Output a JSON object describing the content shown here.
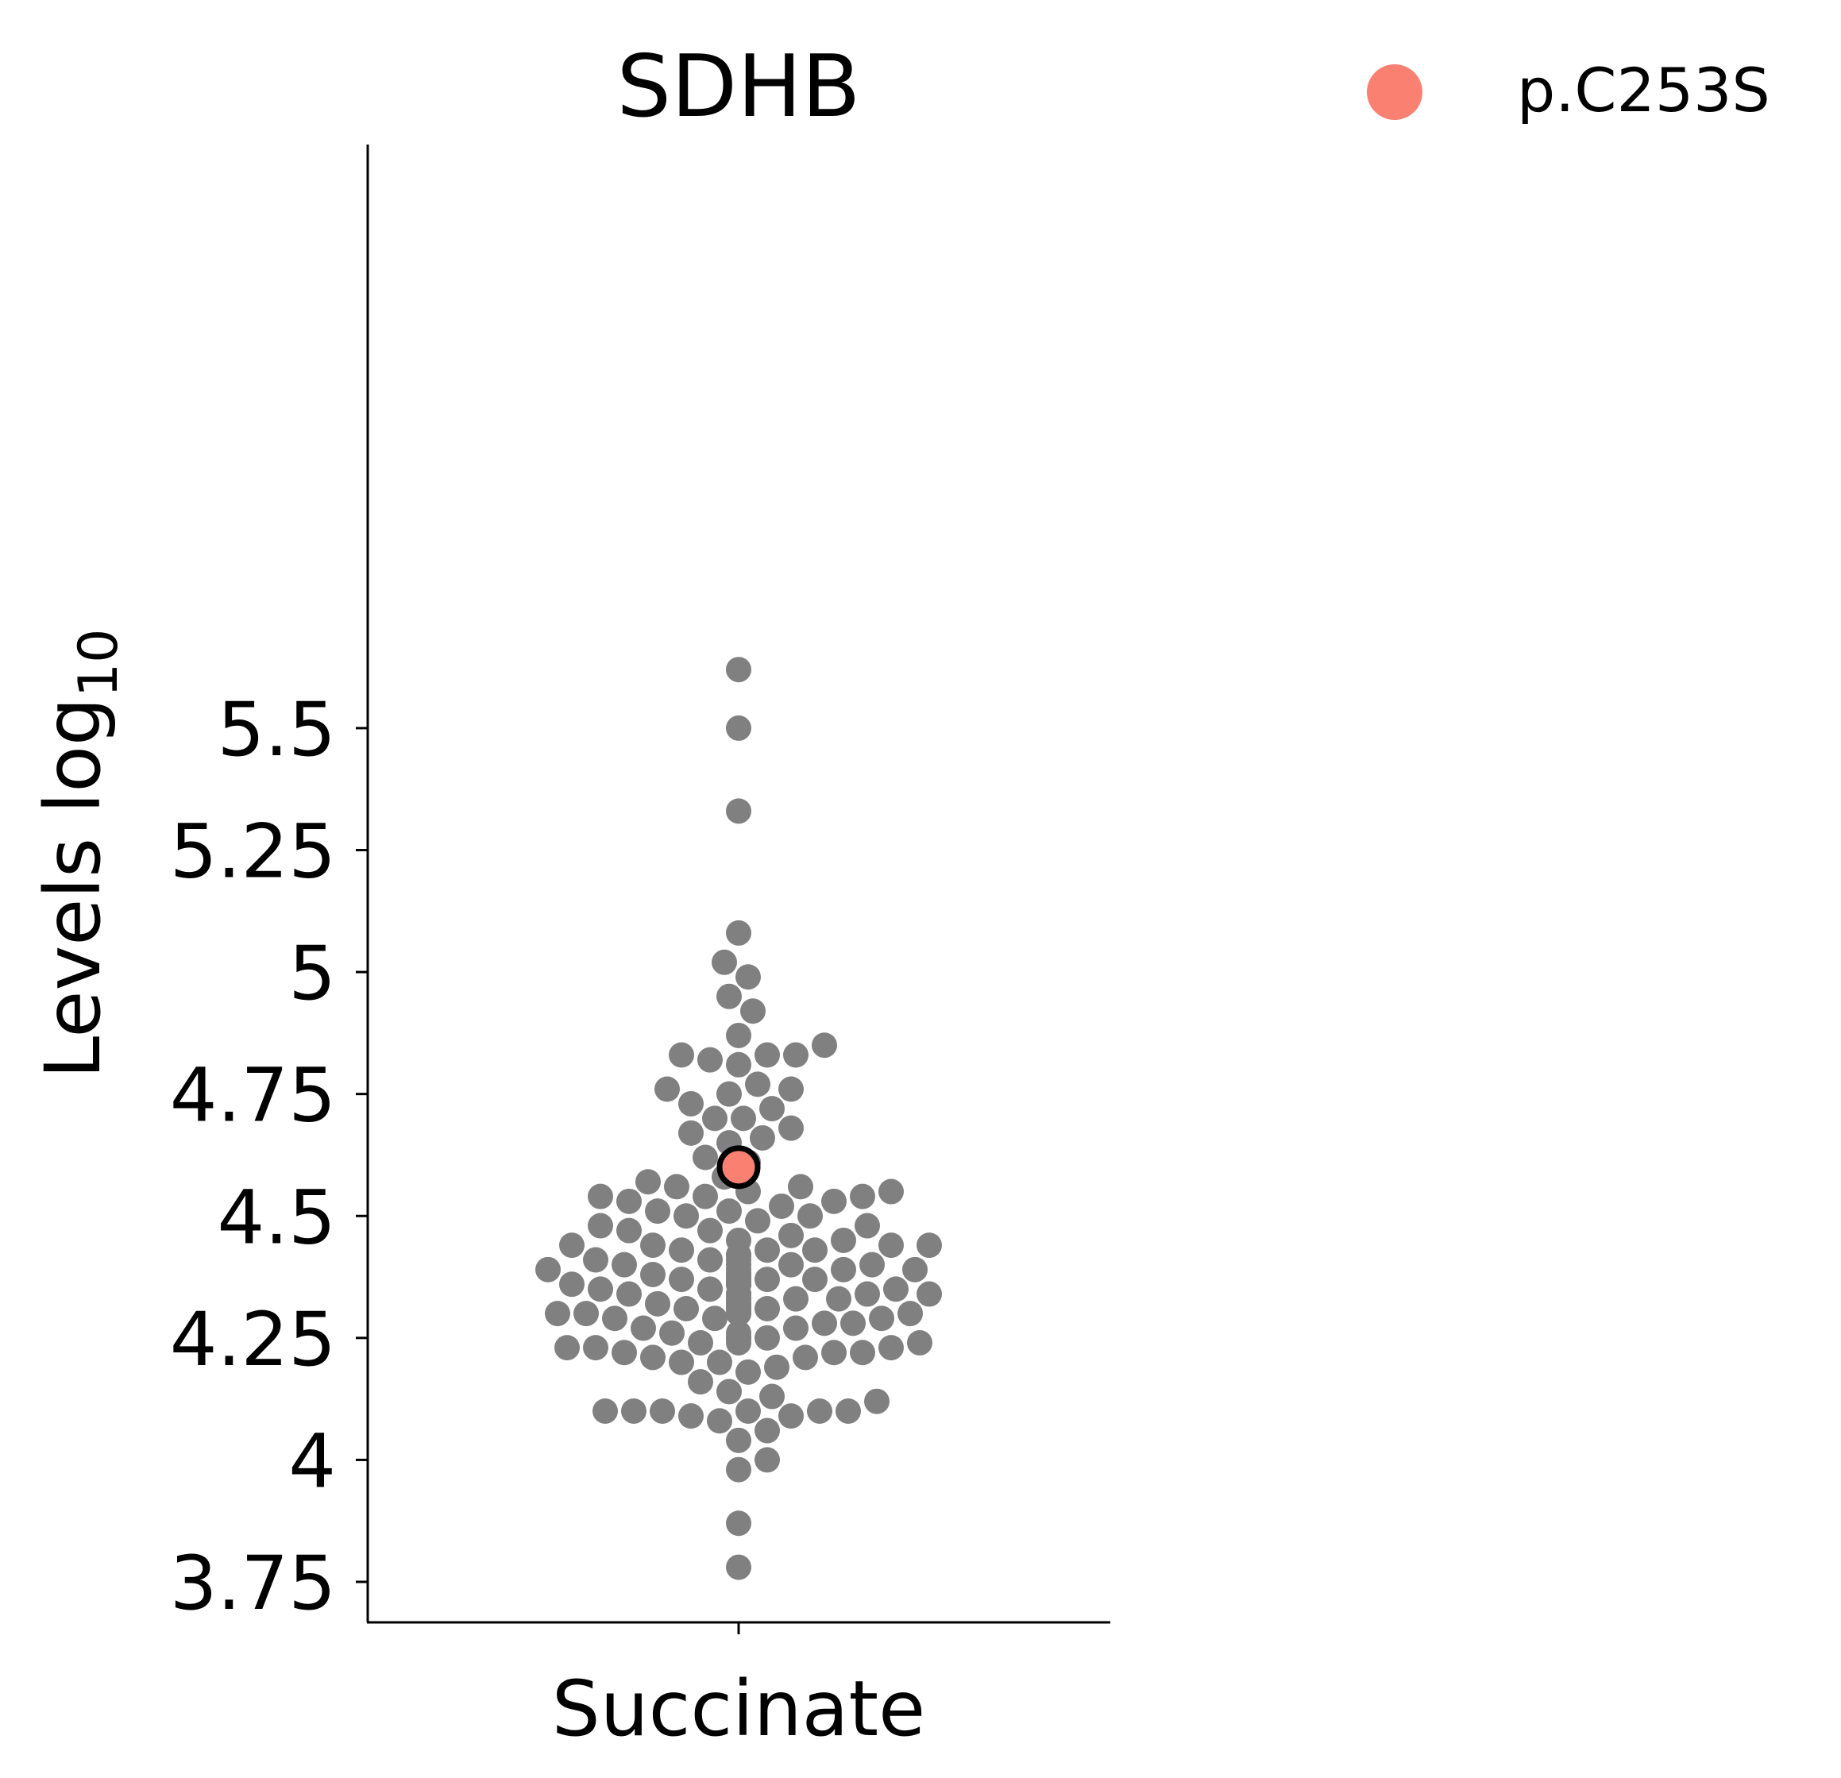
{
  "chart_data": {
    "type": "scatter",
    "subtype": "swarm",
    "title": "SDHB",
    "xlabel": "Succinate",
    "ylabel_text": "Levels log",
    "ylabel_subscript": "10",
    "ylim": [
      3.72,
      5.72
    ],
    "yticks": [
      {
        "value": 3.75,
        "label": "3.75"
      },
      {
        "value": 4.0,
        "label": "4"
      },
      {
        "value": 4.25,
        "label": "4.25"
      },
      {
        "value": 4.5,
        "label": "4.5"
      },
      {
        "value": 4.75,
        "label": "4.75"
      },
      {
        "value": 5.0,
        "label": "5"
      },
      {
        "value": 5.25,
        "label": "5.25"
      },
      {
        "value": 5.5,
        "label": "5.5"
      }
    ],
    "category": "Succinate",
    "point_color": "#808080",
    "highlight": {
      "label": "p.C253S",
      "value": 4.6,
      "color": "#fa8072",
      "edge": "#000000"
    },
    "legend": {
      "placement": "top-right",
      "entries": [
        {
          "label": "p.C253S",
          "color": "#fa8072"
        }
      ]
    },
    "grid": false,
    "values": [
      5.62,
      5.5,
      5.33,
      5.08,
      5.02,
      4.99,
      4.95,
      4.92,
      4.87,
      4.85,
      4.83,
      4.83,
      4.83,
      4.82,
      4.81,
      4.77,
      4.76,
      4.76,
      4.75,
      4.73,
      4.72,
      4.7,
      4.7,
      4.68,
      4.67,
      4.66,
      4.65,
      4.62,
      4.61,
      4.58,
      4.57,
      4.56,
      4.56,
      4.55,
      4.55,
      4.54,
      4.54,
      4.54,
      4.53,
      4.53,
      4.52,
      4.51,
      4.51,
      4.5,
      4.5,
      4.49,
      4.48,
      4.48,
      4.47,
      4.47,
      4.46,
      4.45,
      4.45,
      4.44,
      4.44,
      4.44,
      4.44,
      4.43,
      4.43,
      4.43,
      4.42,
      4.42,
      4.41,
      4.41,
      4.41,
      4.4,
      4.4,
      4.4,
      4.4,
      4.39,
      4.39,
      4.39,
      4.39,
      4.38,
      4.38,
      4.38,
      4.38,
      4.37,
      4.37,
      4.37,
      4.37,
      4.37,
      4.37,
      4.37,
      4.37,
      4.36,
      4.36,
      4.36,
      4.36,
      4.36,
      4.36,
      4.36,
      4.35,
      4.35,
      4.35,
      4.34,
      4.34,
      4.34,
      4.34,
      4.34,
      4.33,
      4.33,
      4.33,
      4.33,
      4.32,
      4.32,
      4.32,
      4.31,
      4.31,
      4.31,
      4.31,
      4.31,
      4.3,
      4.3,
      4.3,
      4.3,
      4.3,
      4.29,
      4.29,
      4.29,
      4.28,
      4.28,
      4.27,
      4.27,
      4.26,
      4.26,
      4.25,
      4.25,
      4.25,
      4.24,
      4.24,
      4.24,
      4.23,
      4.23,
      4.23,
      4.22,
      4.22,
      4.22,
      4.21,
      4.21,
      4.2,
      4.2,
      4.19,
      4.18,
      4.16,
      4.14,
      4.13,
      4.12,
      4.1,
      4.1,
      4.1,
      4.1,
      4.1,
      4.1,
      4.09,
      4.09,
      4.08,
      4.06,
      4.04,
      4.0,
      3.98,
      3.87,
      3.78
    ]
  }
}
